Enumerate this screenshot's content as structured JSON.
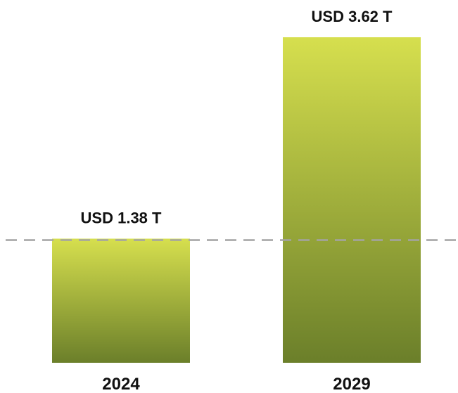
{
  "chart_data": {
    "type": "bar",
    "categories": [
      "2024",
      "2029"
    ],
    "values": [
      1.38,
      3.62
    ],
    "data_labels": [
      "USD 1.38 T",
      "USD 3.62 T"
    ],
    "title": "",
    "xlabel": "",
    "ylabel": "",
    "ylim": [
      0,
      3.62
    ],
    "grid": false,
    "legend": "none",
    "reference_line": {
      "value": 1.38,
      "style": "dashed"
    },
    "colors": {
      "bar_top": "#d6df4e",
      "bar_bottom": "#6b7f2a",
      "reference_line": "#a3a3a3",
      "text": "#111111"
    }
  }
}
